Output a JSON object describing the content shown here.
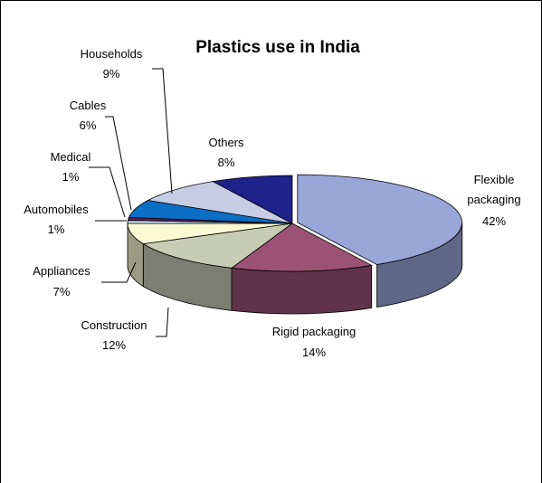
{
  "chart_data": {
    "type": "pie",
    "style": "3d-exploded",
    "title": "Plastics use in India",
    "legend": "none",
    "slices": [
      {
        "label": "Flexible packaging",
        "value": 42,
        "value_label": "42%",
        "color": "#9aa6d8"
      },
      {
        "label": "Rigid packaging",
        "value": 14,
        "value_label": "14%",
        "color": "#9b5275"
      },
      {
        "label": "Construction",
        "value": 12,
        "value_label": "12%",
        "color": "#c7ccb4"
      },
      {
        "label": "Appliances",
        "value": 7,
        "value_label": "7%",
        "color": "#fafad4"
      },
      {
        "label": "Automobiles",
        "value": 1,
        "value_label": "1%",
        "color": "#cfeff7"
      },
      {
        "label": "Medical",
        "value": 1,
        "value_label": "1%",
        "color": "#5b1f5d"
      },
      {
        "label": "Cables",
        "value": 6,
        "value_label": "6%",
        "color": "#0c6fc6"
      },
      {
        "label": "Households",
        "value": 9,
        "value_label": "9%",
        "color": "#c8cde6"
      },
      {
        "label": "Others",
        "value": 8,
        "value_label": "8%",
        "color": "#1e228a"
      }
    ]
  }
}
